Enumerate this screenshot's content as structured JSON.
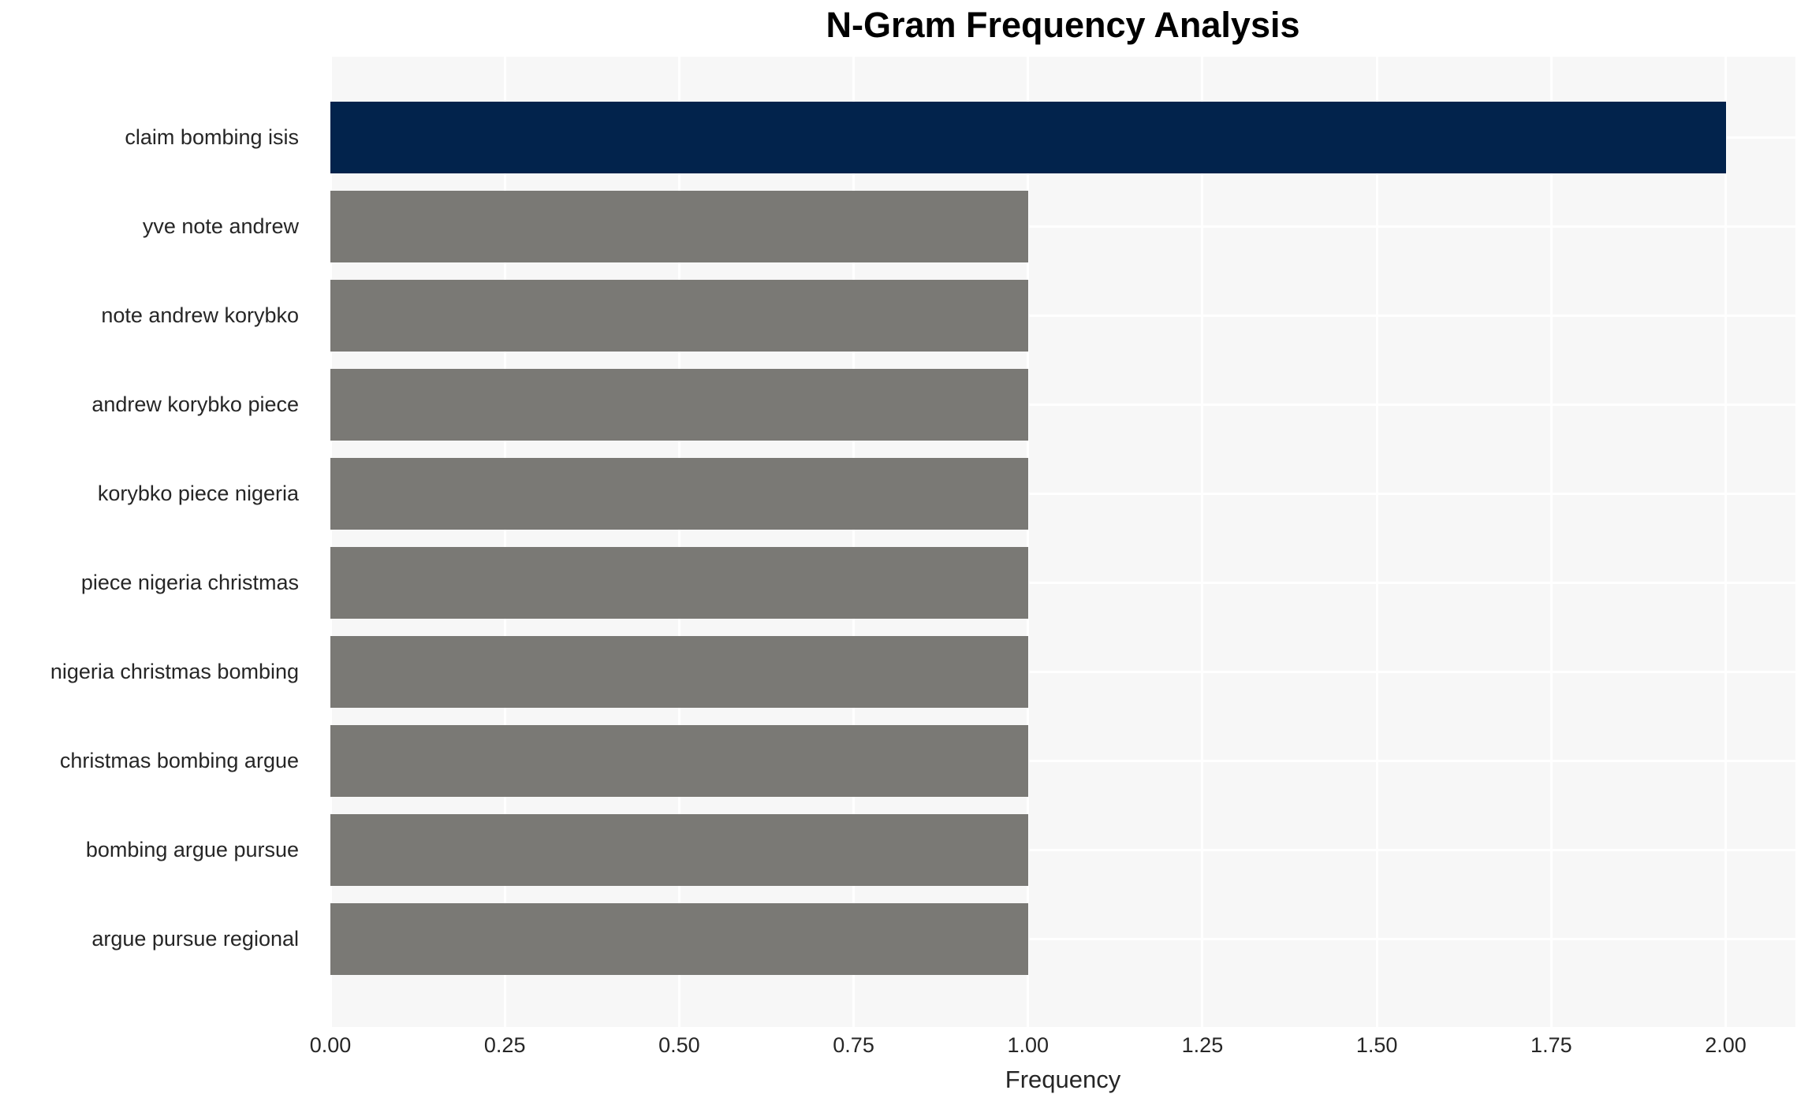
{
  "chart_data": {
    "type": "bar",
    "orientation": "horizontal",
    "title": "N-Gram Frequency Analysis",
    "xlabel": "Frequency",
    "ylabel": "",
    "categories": [
      "claim bombing isis",
      "yve note andrew",
      "note andrew korybko",
      "andrew korybko piece",
      "korybko piece nigeria",
      "piece nigeria christmas",
      "nigeria christmas bombing",
      "christmas bombing argue",
      "bombing argue pursue",
      "argue pursue regional"
    ],
    "values": [
      2,
      1,
      1,
      1,
      1,
      1,
      1,
      1,
      1,
      1
    ],
    "xticks": [
      0.0,
      0.25,
      0.5,
      0.75,
      1.0,
      1.25,
      1.5,
      1.75,
      2.0
    ],
    "xtick_labels": [
      "0.00",
      "0.25",
      "0.50",
      "0.75",
      "1.00",
      "1.25",
      "1.50",
      "1.75",
      "2.00"
    ],
    "xlim": [
      0,
      2.1
    ],
    "grid": true,
    "legend": false,
    "colors": {
      "highlight_bar": "#02234c",
      "default_bar": "#7a7975",
      "plot_background": "#f7f7f7",
      "grid_line": "#ffffff",
      "text": "#262626",
      "title_text": "#000000"
    }
  }
}
